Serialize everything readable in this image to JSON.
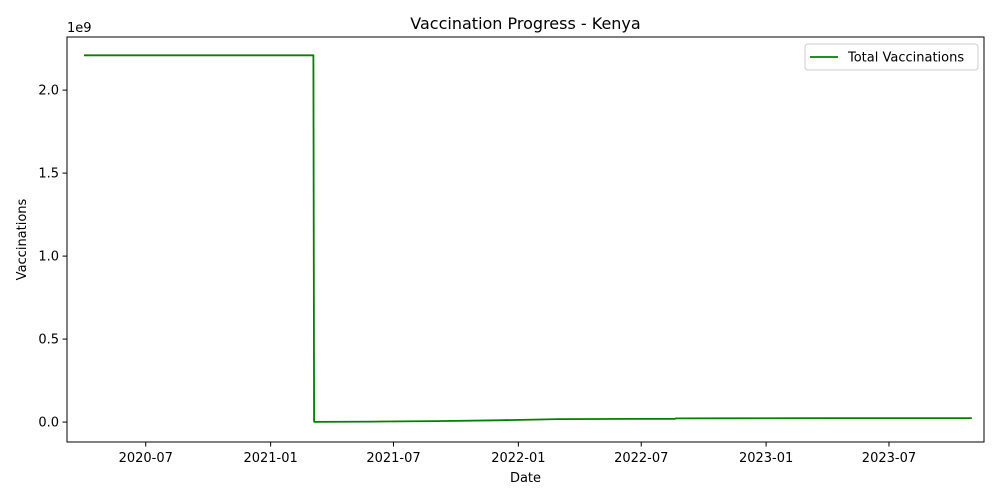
{
  "chart_data": {
    "type": "line",
    "title": "Vaccination Progress - Kenya",
    "xlabel": "Date",
    "ylabel": "Vaccinations",
    "y_offset_label": "1e9",
    "y_scale_factor": 1000000000,
    "xlim": [
      "2020-03-07",
      "2023-11-18"
    ],
    "ylim": [
      -120000000,
      2320000000
    ],
    "x_ticks": [
      {
        "date": "2020-07-01",
        "label": "2020-07"
      },
      {
        "date": "2021-01-01",
        "label": "2021-01"
      },
      {
        "date": "2021-07-01",
        "label": "2021-07"
      },
      {
        "date": "2022-01-01",
        "label": "2022-01"
      },
      {
        "date": "2022-07-01",
        "label": "2022-07"
      },
      {
        "date": "2023-01-01",
        "label": "2023-01"
      },
      {
        "date": "2023-07-01",
        "label": "2023-07"
      }
    ],
    "y_ticks": [
      {
        "value": 0,
        "label": "0.0"
      },
      {
        "value": 500000000,
        "label": "0.5"
      },
      {
        "value": 1000000000,
        "label": "1.0"
      },
      {
        "value": 1500000000,
        "label": "1.5"
      },
      {
        "value": 2000000000,
        "label": "2.0"
      }
    ],
    "grid": false,
    "legend": "top-right",
    "series": [
      {
        "name": "Total Vaccinations",
        "color": "#008000",
        "x": [
          "2020-04-01",
          "2021-03-05",
          "2021-03-06",
          "2021-06-01",
          "2021-09-01",
          "2021-12-01",
          "2022-03-01",
          "2022-08-20",
          "2022-08-21",
          "2022-11-01",
          "2023-04-01",
          "2023-10-31"
        ],
        "y": [
          2210000000,
          2210000000,
          1000000,
          3000000,
          6000000,
          11000000,
          18000000,
          20000000,
          22000000,
          23000000,
          24000000,
          24000000
        ]
      }
    ]
  }
}
